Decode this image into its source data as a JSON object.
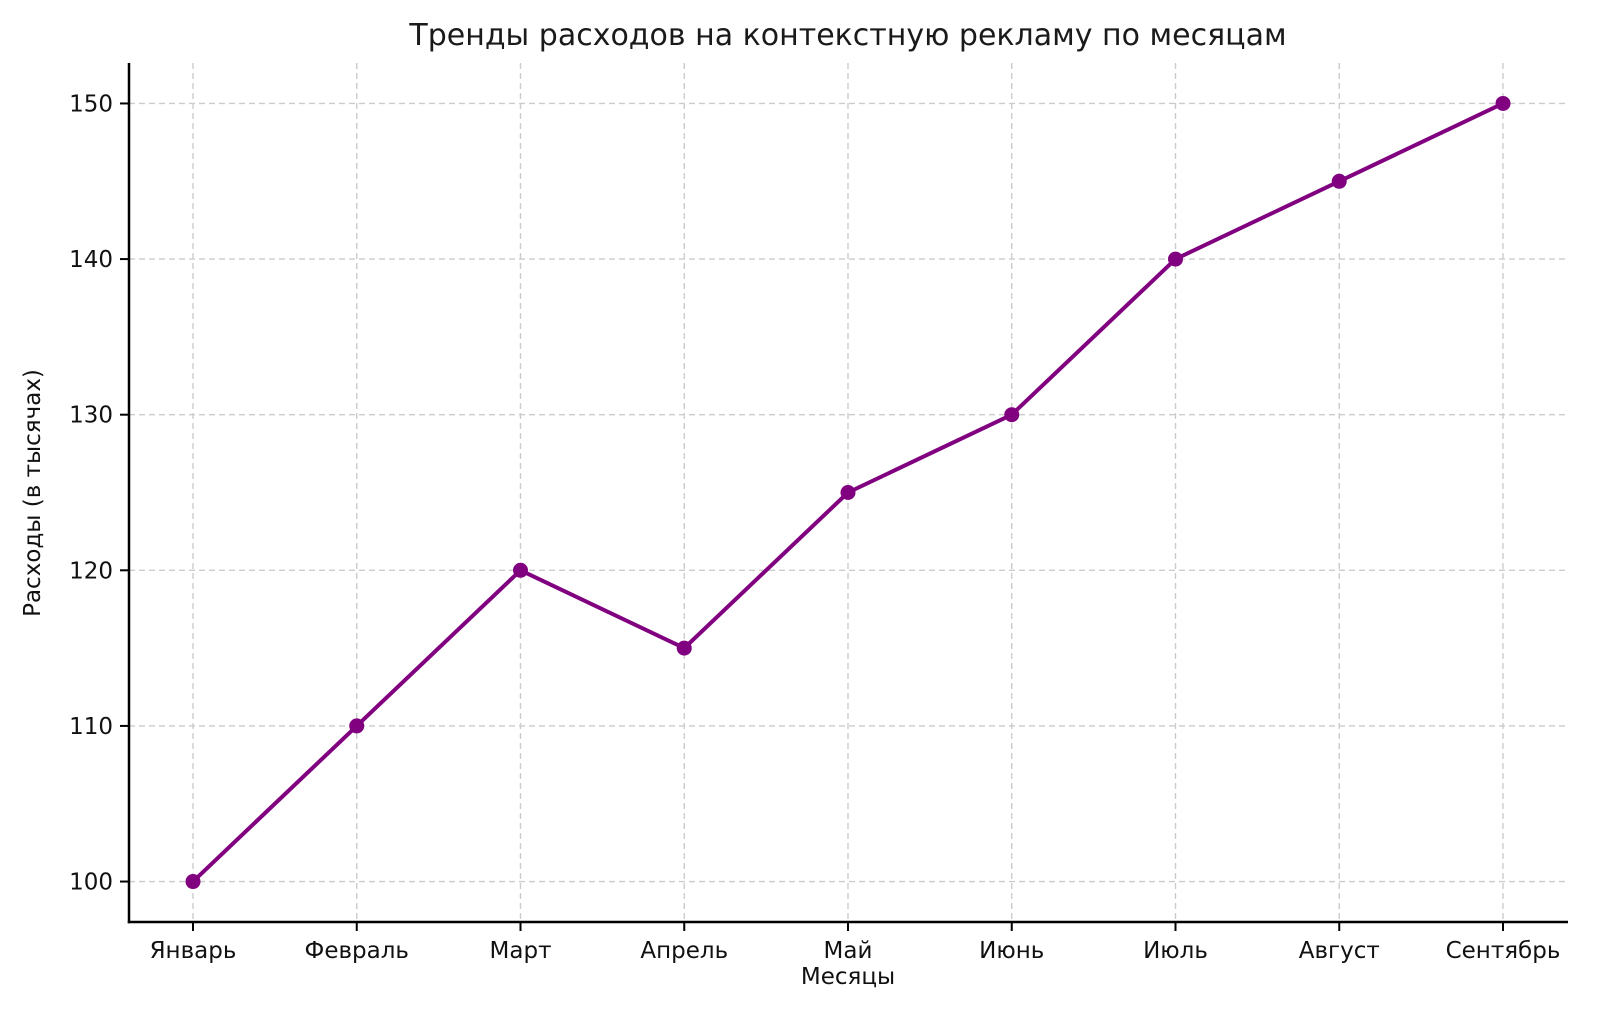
{
  "chart_data": {
    "type": "line",
    "title": "Тренды расходов на контекстную рекламу по месяцам",
    "xlabel": "Месяцы",
    "ylabel": "Расходы (в тысячах)",
    "categories": [
      "Январь",
      "Февраль",
      "Март",
      "Апрель",
      "Май",
      "Июнь",
      "Июль",
      "Август",
      "Сентябрь"
    ],
    "values": [
      100,
      110,
      120,
      115,
      125,
      130,
      140,
      145,
      150
    ],
    "series_name": "Расходы",
    "yticks": [
      100,
      110,
      120,
      130,
      140,
      150
    ],
    "ylim": [
      97.4,
      152.6
    ],
    "grid": "dashed-both-axes",
    "legend": "none",
    "marker": "circle",
    "line_color": "#800080",
    "marker_color": "#800080",
    "grid_color": "#cccccc",
    "axis_color": "#000000",
    "text_color": "#111111",
    "background_color": "#ffffff"
  }
}
